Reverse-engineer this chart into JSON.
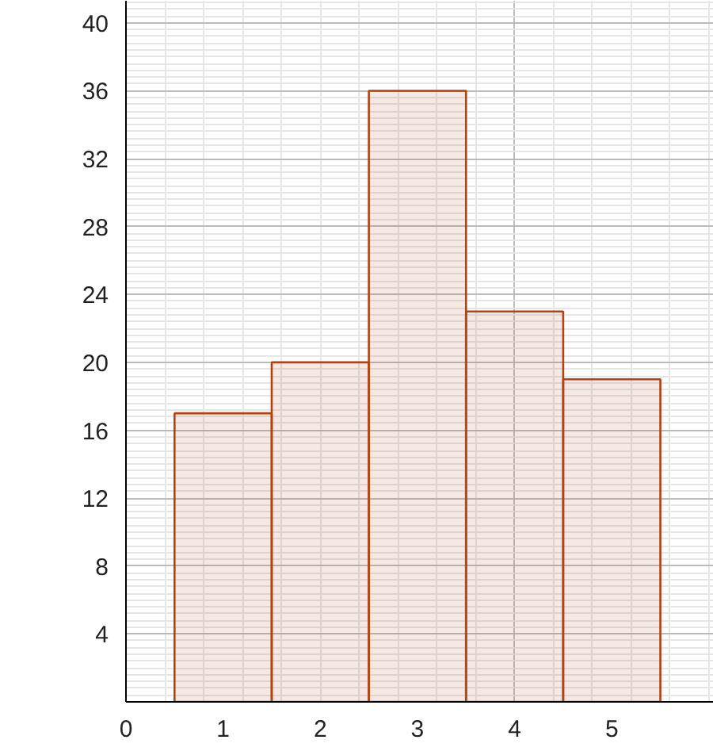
{
  "chart_data": {
    "type": "histogram",
    "bins": [
      0.5,
      1.5,
      2.5,
      3.5,
      4.5,
      5.5
    ],
    "values": [
      17,
      20,
      36,
      23,
      19
    ],
    "color": "#b5420f",
    "xlim": [
      0,
      6.05
    ],
    "ylim": [
      0,
      41.3
    ],
    "xticks": [
      0,
      1,
      2,
      3,
      4,
      5
    ],
    "yticks": [
      4,
      8,
      12,
      16,
      20,
      24,
      28,
      32,
      36,
      40
    ],
    "grid": true
  }
}
